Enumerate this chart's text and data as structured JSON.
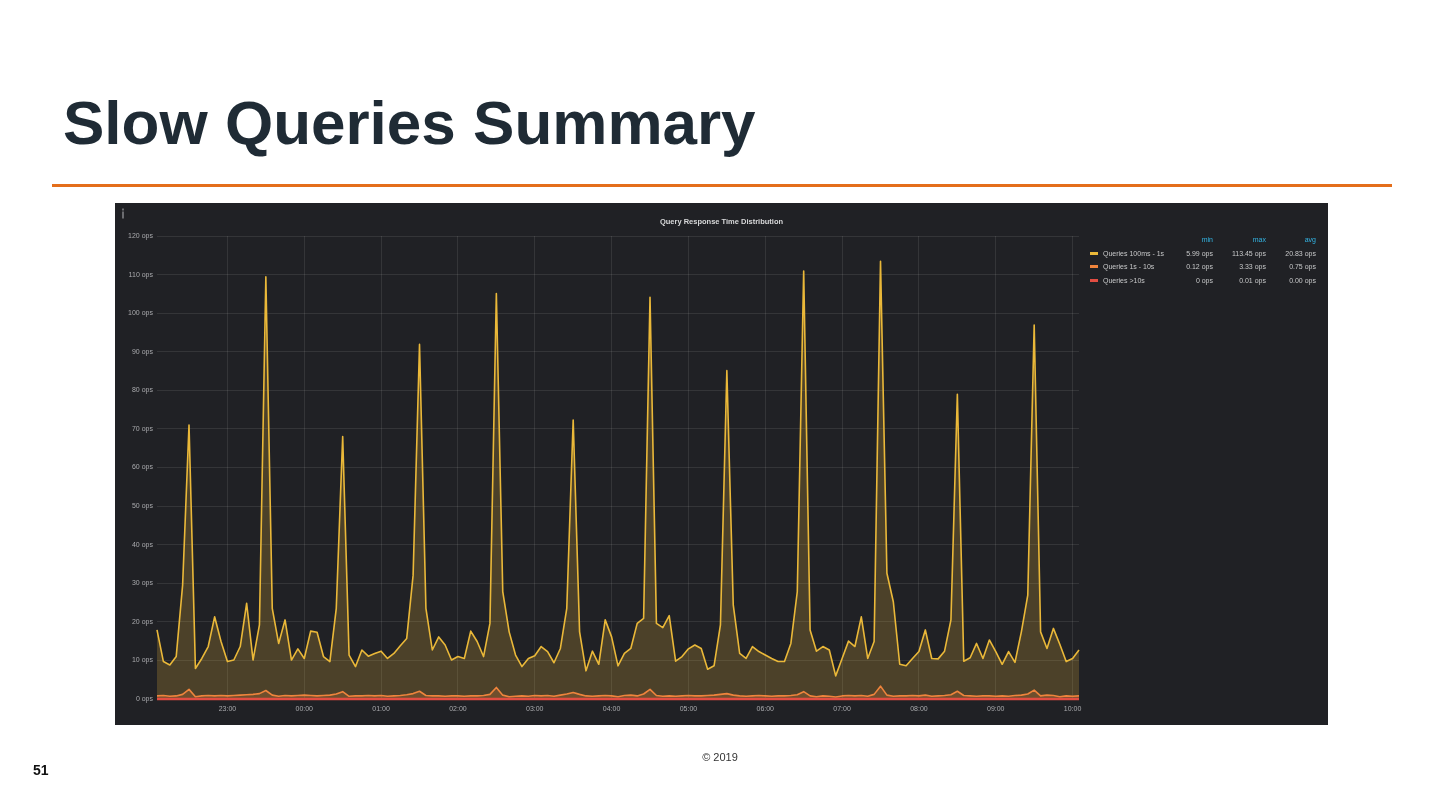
{
  "chart_data": {
    "type": "area",
    "title": "Slow Queries Summary",
    "subtitle": "Query Response Time Distribution",
    "categories": [
      null,
      null,
      null,
      null,
      null,
      null,
      null,
      null,
      null,
      null,
      null,
      "23:00",
      null,
      null,
      null,
      null,
      null,
      null,
      null,
      null,
      null,
      null,
      null,
      "00:00",
      null,
      null,
      null,
      null,
      null,
      null,
      null,
      null,
      null,
      null,
      null,
      "01:00",
      null,
      null,
      null,
      null,
      null,
      null,
      null,
      null,
      null,
      null,
      null,
      "02:00",
      null,
      null,
      null,
      null,
      null,
      null,
      null,
      null,
      null,
      null,
      null,
      "03:00",
      null,
      null,
      null,
      null,
      null,
      null,
      null,
      null,
      null,
      null,
      null,
      "04:00",
      null,
      null,
      null,
      null,
      null,
      null,
      null,
      null,
      null,
      null,
      null,
      "05:00",
      null,
      null,
      null,
      null,
      null,
      null,
      null,
      null,
      null,
      null,
      null,
      "06:00",
      null,
      null,
      null,
      null,
      null,
      null,
      null,
      null,
      null,
      null,
      null,
      "07:00",
      null,
      null,
      null,
      null,
      null,
      null,
      null,
      null,
      null,
      null,
      null,
      "08:00",
      null,
      null,
      null,
      null,
      null,
      null,
      null,
      null,
      null,
      null,
      null,
      "09:00",
      null,
      null,
      null,
      null,
      null,
      null,
      null,
      null,
      null,
      null,
      null,
      "10:00",
      null
    ],
    "ylim": [
      0,
      120
    ],
    "yticks": [
      {
        "value": 0,
        "label": "0 ops"
      },
      {
        "value": 10,
        "label": "10 ops"
      },
      {
        "value": 20,
        "label": "20 ops"
      },
      {
        "value": 30,
        "label": "30 ops"
      },
      {
        "value": 40,
        "label": "40 ops"
      },
      {
        "value": 50,
        "label": "50 ops"
      },
      {
        "value": 60,
        "label": "60 ops"
      },
      {
        "value": 70,
        "label": "70 ops"
      },
      {
        "value": 80,
        "label": "80 ops"
      },
      {
        "value": 90,
        "label": "90 ops"
      },
      {
        "value": 100,
        "label": "100 ops"
      },
      {
        "value": 110,
        "label": "110 ops"
      },
      {
        "value": 120,
        "label": "120 ops"
      }
    ],
    "series": [
      {
        "name": "Queries 100ms - 1s",
        "color": "#eab839",
        "values": [
          17.9,
          9.7,
          8.8,
          11.0,
          29.5,
          71.0,
          7.9,
          10.5,
          13.6,
          21.3,
          14.9,
          9.7,
          10.1,
          13.6,
          24.8,
          10.1,
          19.2,
          109.4,
          23.5,
          14.4,
          20.5,
          10.1,
          13.0,
          10.5,
          17.6,
          17.3,
          11.0,
          9.7,
          23.5,
          68.0,
          11.4,
          8.4,
          12.7,
          11.1,
          11.8,
          12.4,
          10.5,
          11.8,
          13.8,
          15.7,
          32.1,
          91.9,
          23.5,
          12.7,
          16.1,
          14.0,
          10.1,
          11.0,
          10.5,
          17.6,
          14.9,
          11.0,
          19.6,
          105.1,
          27.8,
          17.4,
          11.4,
          8.4,
          10.5,
          11.2,
          13.6,
          12.3,
          9.4,
          13.1,
          23.5,
          72.3,
          17.4,
          7.3,
          12.4,
          9.0,
          20.5,
          16.1,
          8.6,
          11.8,
          13.1,
          19.6,
          20.9,
          104.1,
          19.6,
          18.5,
          21.6,
          9.8,
          11.0,
          13.0,
          14.0,
          13.1,
          7.7,
          8.6,
          19.2,
          85.1,
          24.4,
          11.8,
          10.5,
          13.6,
          12.3,
          11.4,
          10.5,
          9.7,
          9.7,
          14.4,
          27.8,
          110.9,
          17.9,
          12.4,
          13.6,
          12.7,
          5.99,
          10.5,
          15.0,
          13.6,
          21.3,
          10.5,
          14.9,
          113.45,
          32.6,
          25.2,
          9.0,
          8.6,
          10.5,
          12.3,
          17.9,
          10.5,
          10.4,
          12.4,
          20.5,
          79.0,
          9.8,
          10.7,
          14.4,
          10.5,
          15.3,
          12.3,
          9.0,
          12.3,
          9.5,
          17.4,
          26.9,
          96.9,
          17.4,
          13.1,
          18.3,
          14.2,
          9.7,
          10.5,
          12.7
        ]
      },
      {
        "name": "Queries 1s - 10s",
        "color": "#ef843c",
        "values": [
          0.8,
          0.9,
          0.7,
          0.8,
          1.2,
          2.5,
          0.6,
          0.8,
          0.9,
          0.8,
          0.9,
          0.8,
          0.9,
          1.0,
          1.1,
          1.2,
          1.4,
          2.2,
          1.0,
          0.7,
          0.9,
          0.8,
          0.9,
          1.0,
          0.9,
          0.8,
          0.9,
          1.0,
          1.3,
          1.9,
          0.7,
          0.8,
          0.8,
          0.9,
          0.8,
          0.9,
          0.7,
          0.8,
          0.9,
          1.1,
          1.4,
          2.0,
          0.9,
          0.8,
          0.8,
          0.7,
          0.8,
          0.8,
          0.7,
          0.8,
          0.8,
          0.9,
          1.2,
          3.0,
          1.0,
          0.6,
          0.7,
          0.8,
          0.7,
          0.9,
          0.8,
          0.9,
          0.7,
          1.0,
          1.3,
          1.7,
          1.2,
          0.8,
          0.7,
          0.8,
          0.9,
          0.8,
          0.6,
          0.9,
          1.0,
          0.8,
          1.3,
          2.5,
          0.9,
          0.7,
          0.8,
          0.7,
          0.8,
          0.9,
          0.8,
          0.8,
          0.9,
          1.0,
          1.2,
          1.4,
          1.0,
          0.8,
          0.7,
          0.8,
          0.9,
          0.8,
          0.7,
          0.8,
          0.8,
          0.9,
          1.1,
          1.9,
          0.8,
          0.6,
          0.8,
          0.7,
          0.5,
          0.8,
          0.9,
          0.8,
          0.9,
          0.7,
          1.2,
          3.33,
          1.0,
          0.7,
          0.8,
          0.8,
          0.9,
          0.8,
          1.0,
          0.7,
          0.8,
          0.9,
          1.1,
          2.0,
          0.9,
          0.8,
          0.7,
          0.8,
          0.8,
          0.7,
          0.8,
          0.7,
          0.9,
          1.0,
          1.3,
          2.3,
          0.8,
          1.0,
          0.9,
          0.6,
          0.8,
          0.7,
          0.8
        ]
      },
      {
        "name": "Queries >10s",
        "type": "line",
        "color": "#e24d42",
        "values": [
          0,
          0,
          0,
          0,
          0,
          0,
          0,
          0,
          0,
          0,
          0,
          0,
          0,
          0,
          0,
          0,
          0,
          0,
          0,
          0,
          0,
          0,
          0,
          0,
          0,
          0,
          0,
          0,
          0,
          0,
          0,
          0,
          0,
          0,
          0,
          0,
          0,
          0,
          0,
          0,
          0,
          0,
          0,
          0,
          0,
          0,
          0,
          0,
          0,
          0,
          0,
          0,
          0,
          0,
          0,
          0,
          0,
          0,
          0,
          0,
          0,
          0,
          0,
          0,
          0,
          0,
          0,
          0,
          0,
          0,
          0,
          0,
          0,
          0,
          0,
          0,
          0,
          0,
          0,
          0,
          0,
          0,
          0,
          0,
          0,
          0,
          0,
          0,
          0,
          0,
          0,
          0,
          0,
          0,
          0,
          0,
          0,
          0,
          0,
          0,
          0,
          0,
          0,
          0,
          0,
          0,
          0,
          0,
          0,
          0,
          0,
          0,
          0,
          0,
          0,
          0,
          0,
          0,
          0,
          0,
          0,
          0,
          0,
          0,
          0,
          0,
          0,
          0,
          0,
          0,
          0,
          0,
          0,
          0,
          0,
          0,
          0,
          0,
          0,
          0,
          0,
          0,
          0,
          0,
          0
        ]
      }
    ],
    "grid": true,
    "legend": "right",
    "annotations": [
      "min",
      "max",
      "avg",
      "5.99 ops",
      "113.45 ops",
      "20.83 ops",
      "0.12 ops",
      "3.33 ops",
      "0.75 ops",
      "0 ops",
      "0.01 ops",
      "0.00 ops",
      "51",
      "© 2019"
    ]
  }
}
